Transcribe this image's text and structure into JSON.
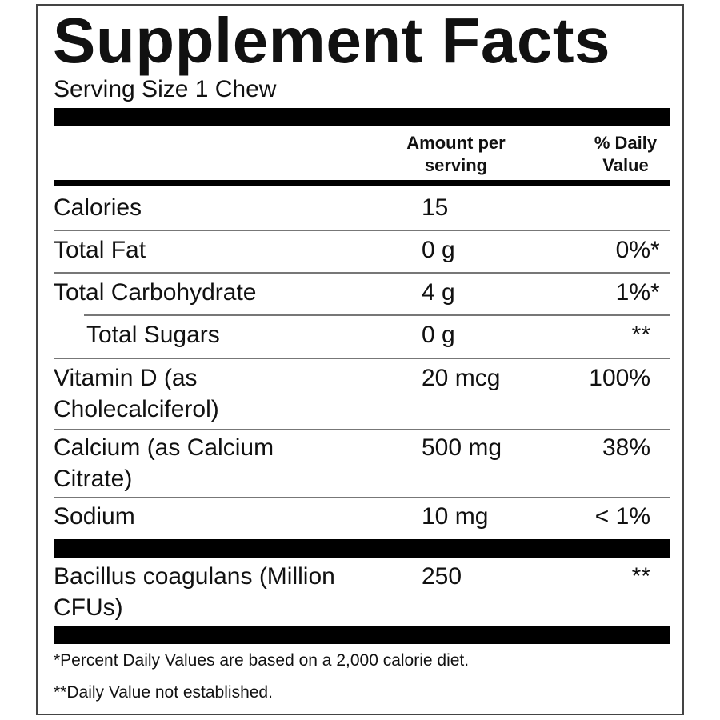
{
  "title": "Supplement Facts",
  "serving_size": "Serving Size 1 Chew",
  "headers": {
    "amount": [
      "Amount per",
      "serving"
    ],
    "daily_value": [
      "% Daily",
      "Value"
    ]
  },
  "rows": [
    {
      "name": [
        "Calories"
      ],
      "amount": "15",
      "dv": "",
      "mark": ""
    },
    {
      "name": [
        "Total Fat"
      ],
      "amount": "0 g",
      "dv": "0%",
      "mark": "*"
    },
    {
      "name": [
        "Total Carbohydrate"
      ],
      "amount": "4 g",
      "dv": "1%",
      "mark": "*"
    },
    {
      "name": [
        "Total Sugars"
      ],
      "amount": "0 g",
      "dv": "**",
      "mark": "",
      "indent": true
    },
    {
      "name": [
        "Vitamin D (as",
        "Cholecalciferol)"
      ],
      "amount": "20 mcg",
      "dv": "100%",
      "mark": ""
    },
    {
      "name": [
        "Calcium (as Calcium",
        "Citrate)"
      ],
      "amount": "500 mg",
      "dv": "38%",
      "mark": ""
    },
    {
      "name": [
        "Sodium"
      ],
      "amount": "10 mg",
      "dv": "< 1%",
      "mark": ""
    },
    {
      "name": [
        "Bacillus coagulans (Million",
        "CFUs)"
      ],
      "amount": "250",
      "dv": "**",
      "mark": ""
    }
  ],
  "footnotes": [
    "*Percent Daily Values are based on a 2,000 calorie diet.",
    "**Daily Value not established."
  ]
}
